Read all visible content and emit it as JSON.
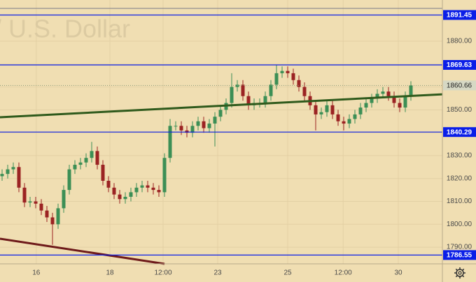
{
  "chart_data": {
    "type": "candlestick",
    "watermark": "/ U.S. Dollar",
    "xlim": [
      -0.375,
      78.625
    ],
    "xticks": [
      {
        "value": 6.1,
        "label": "16"
      },
      {
        "value": 19.25,
        "label": "18"
      },
      {
        "value": 28.75,
        "label": "12:00"
      },
      {
        "value": 38.5,
        "label": "23"
      },
      {
        "value": 51,
        "label": "25"
      },
      {
        "value": 60.9,
        "label": "12:00"
      },
      {
        "value": 70.75,
        "label": "30"
      }
    ],
    "ylim": [
      1782.7,
      1898
    ],
    "yticks": [
      {
        "value": 1790,
        "label": "1790.00"
      },
      {
        "value": 1800,
        "label": "1800.00"
      },
      {
        "value": 1810,
        "label": "1810.00"
      },
      {
        "value": 1820,
        "label": "1820.00"
      },
      {
        "value": 1830,
        "label": "1830.00"
      },
      {
        "value": 1840,
        "label": "1840.00"
      },
      {
        "value": 1850,
        "label": "1850.00"
      },
      {
        "value": 1860,
        "label": "1860.00"
      },
      {
        "value": 1870,
        "label": "1870.00"
      },
      {
        "value": 1880,
        "label": "1880.00"
      }
    ],
    "grid": true,
    "up_color": "#3c8f55",
    "down_color": "#9b2323",
    "open": [
      1821,
      1822,
      1824,
      1825,
      1816,
      1809.5,
      1810,
      1809,
      1806,
      1803,
      1800,
      1807,
      1815,
      1824,
      1826,
      1827,
      1829,
      1832,
      1826,
      1819,
      1816,
      1813,
      1811,
      1812,
      1814,
      1816,
      1817,
      1816,
      1815,
      1814,
      1829,
      1843,
      1843,
      1841,
      1840,
      1843,
      1845,
      1842,
      1844,
      1847,
      1850,
      1853,
      1860,
      1861,
      1856,
      1852,
      1853,
      1853,
      1856,
      1861,
      1866,
      1867,
      1866,
      1863,
      1860,
      1856,
      1852,
      1848,
      1849,
      1852,
      1848,
      1845,
      1844,
      1846,
      1848,
      1851,
      1853,
      1855,
      1857,
      1858,
      1856,
      1853,
      1851,
      1856
    ],
    "high": [
      1824,
      1826,
      1827,
      1827,
      1818,
      1812,
      1812,
      1811,
      1808,
      1805,
      1809,
      1817,
      1826,
      1828,
      1829,
      1831,
      1836,
      1834,
      1828,
      1821,
      1818,
      1815,
      1814,
      1816,
      1818,
      1819,
      1819,
      1818,
      1817,
      1831,
      1846,
      1845,
      1845,
      1843,
      1845,
      1847,
      1847,
      1846,
      1849,
      1852,
      1855,
      1866,
      1863,
      1863,
      1858,
      1855,
      1855,
      1858,
      1863,
      1869.6,
      1869,
      1869,
      1868,
      1865,
      1862,
      1858,
      1854,
      1851,
      1854,
      1854,
      1850,
      1847,
      1848,
      1850,
      1853,
      1855,
      1857,
      1859,
      1860,
      1860,
      1858,
      1855,
      1858,
      1862.5
    ],
    "low": [
      1819,
      1820,
      1822,
      1814,
      1807.5,
      1807.5,
      1807,
      1804,
      1801,
      1791,
      1798,
      1805,
      1813,
      1822,
      1824,
      1825,
      1827,
      1824,
      1817,
      1814,
      1811,
      1809,
      1809,
      1810,
      1812,
      1814,
      1814,
      1813,
      1812,
      1812,
      1827,
      1841,
      1839,
      1838,
      1838,
      1841,
      1840,
      1840,
      1834,
      1845,
      1848,
      1851,
      1858,
      1854,
      1850,
      1850,
      1851,
      1851,
      1854,
      1859,
      1864,
      1864,
      1861,
      1858,
      1854,
      1850,
      1841,
      1846,
      1847,
      1846,
      1843,
      1841,
      1842,
      1844,
      1846,
      1849,
      1851,
      1853,
      1855,
      1854,
      1851,
      1849,
      1849,
      1854
    ],
    "close": [
      1822,
      1824,
      1825,
      1816,
      1809.5,
      1810,
      1809,
      1806,
      1803,
      1800,
      1807,
      1815,
      1824,
      1826,
      1827,
      1829,
      1832,
      1826,
      1819,
      1816,
      1813,
      1811,
      1812,
      1814,
      1816,
      1817,
      1816,
      1815,
      1814,
      1829,
      1843,
      1843,
      1841,
      1840,
      1843,
      1845,
      1842,
      1844,
      1847,
      1850,
      1853,
      1860,
      1861,
      1856,
      1852,
      1853,
      1853,
      1856,
      1861,
      1866,
      1867,
      1866,
      1863,
      1860,
      1856,
      1852,
      1848,
      1849,
      1852,
      1848,
      1845,
      1844,
      1846,
      1848,
      1851,
      1853,
      1855,
      1857,
      1858,
      1856,
      1853,
      1851,
      1856,
      1860.66
    ],
    "levels": [
      1891.45,
      1869.63,
      1840.29,
      1786.55
    ],
    "level_color": "#0a1ee8",
    "trendlines": [
      {
        "color": "#2f5a1c",
        "x": [
          -0.375,
          78.625
        ],
        "y": [
          1846.75,
          1856.8
        ]
      },
      {
        "color": "#6e1a1a",
        "x": [
          -0.375,
          29
        ],
        "y": [
          1793.7,
          1782.7
        ]
      }
    ]
  }
}
